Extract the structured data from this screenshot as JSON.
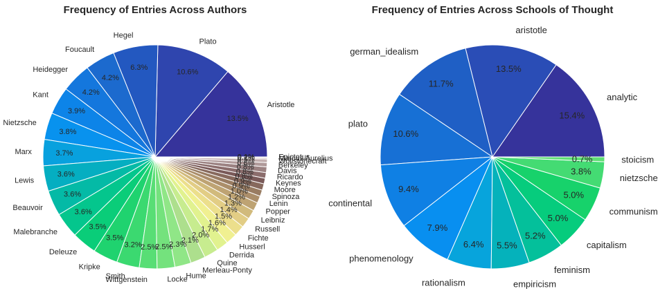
{
  "chart_data": [
    {
      "type": "pie",
      "title": "Frequency of Entries Across Authors",
      "start_angle_deg": 0,
      "direction": "counterclockwise",
      "categories": [
        "Aristotle",
        "Plato",
        "Hegel",
        "Foucault",
        "Heidegger",
        "Kant",
        "Nietzsche",
        "Marx",
        "Lewis",
        "Beauvoir",
        "Malebranche",
        "Deleuze",
        "Kripke",
        "Smith",
        "Wittgenstein",
        "Locke",
        "Hume",
        "Merleau-Ponty",
        "Quine",
        "Derrida",
        "Husserl",
        "Fichte",
        "Russell",
        "Leibniz",
        "Popper",
        "Lenin",
        "Spinoza",
        "Moore",
        "Keynes",
        "Ricardo",
        "Davis",
        "Berkeley",
        "Wollstonecraft",
        "Marcus Aurelius",
        "Epictetus"
      ],
      "values": [
        13.5,
        10.6,
        6.3,
        4.2,
        4.2,
        3.9,
        3.8,
        3.7,
        3.6,
        3.6,
        3.6,
        3.5,
        3.5,
        3.2,
        2.5,
        2.5,
        2.3,
        2.1,
        2.0,
        1.7,
        1.6,
        1.5,
        1.4,
        1.3,
        1.2,
        1.0,
        0.9,
        0.9,
        0.8,
        0.8,
        0.8,
        0.6,
        0.5,
        0.2,
        0.1
      ],
      "value_labels": [
        "13.5%",
        "10.6%",
        "6.3%",
        "4.2%",
        "4.2%",
        "3.9%",
        "3.8%",
        "3.7%",
        "3.6%",
        "3.6%",
        "3.6%",
        "3.5%",
        "3.5%",
        "3.2%",
        "2.5%",
        "2.5%",
        "2.3%",
        "2.1%",
        "2.0%",
        "1.7%",
        "1.6%",
        "1.5%",
        "1.4%",
        "1.3%",
        "1.2%",
        "1.0%",
        "0.9%",
        "0.9%",
        "0.8%",
        "0.8%",
        "0.8%",
        "0.6%",
        "0.5%",
        "0.2%",
        "0.1%"
      ],
      "colors": [
        "#36339b",
        "#2f45ae",
        "#2358c0",
        "#1c6ace",
        "#1477dd",
        "#0d84e8",
        "#0892ee",
        "#08a1de",
        "#05aec1",
        "#04baa6",
        "#04c68d",
        "#0acd79",
        "#1fd36f",
        "#3bd970",
        "#58de75",
        "#74e27d",
        "#90e687",
        "#addf8d",
        "#c7ec8f",
        "#e1f28f",
        "#f0f091",
        "#ecdf8c",
        "#e2cd85",
        "#d1ba7c",
        "#bea373",
        "#ab8e6a",
        "#997c62",
        "#87695d",
        "#7a5a59",
        "#8b6d6c",
        "#9c8383",
        "#b09a9a",
        "#c3b0b0",
        "#d7c8c8",
        "#e8dede"
      ]
    },
    {
      "type": "pie",
      "title": "Frequency of Entries Across Schools of Thought",
      "start_angle_deg": 0,
      "direction": "counterclockwise",
      "categories": [
        "analytic",
        "aristotle",
        "german_idealism",
        "plato",
        "continental",
        "phenomenology",
        "rationalism",
        "empiricism",
        "feminism",
        "capitalism",
        "communism",
        "nietzsche",
        "stoicism"
      ],
      "values": [
        15.4,
        13.5,
        11.7,
        10.6,
        9.4,
        7.9,
        6.4,
        5.5,
        5.2,
        5.0,
        5.0,
        3.8,
        0.7
      ],
      "value_labels": [
        "15.4%",
        "13.5%",
        "11.7%",
        "10.6%",
        "9.4%",
        "7.9%",
        "6.4%",
        "5.5%",
        "5.2%",
        "5.0%",
        "5.0%",
        "3.8%",
        "0.7%"
      ],
      "colors": [
        "#36339b",
        "#2a4db6",
        "#1f5fc5",
        "#1770d5",
        "#0f80e4",
        "#088ff0",
        "#07a4dc",
        "#05b2bb",
        "#04c09b",
        "#06cc7d",
        "#17d26b",
        "#44db73",
        "#5fe074"
      ]
    }
  ]
}
